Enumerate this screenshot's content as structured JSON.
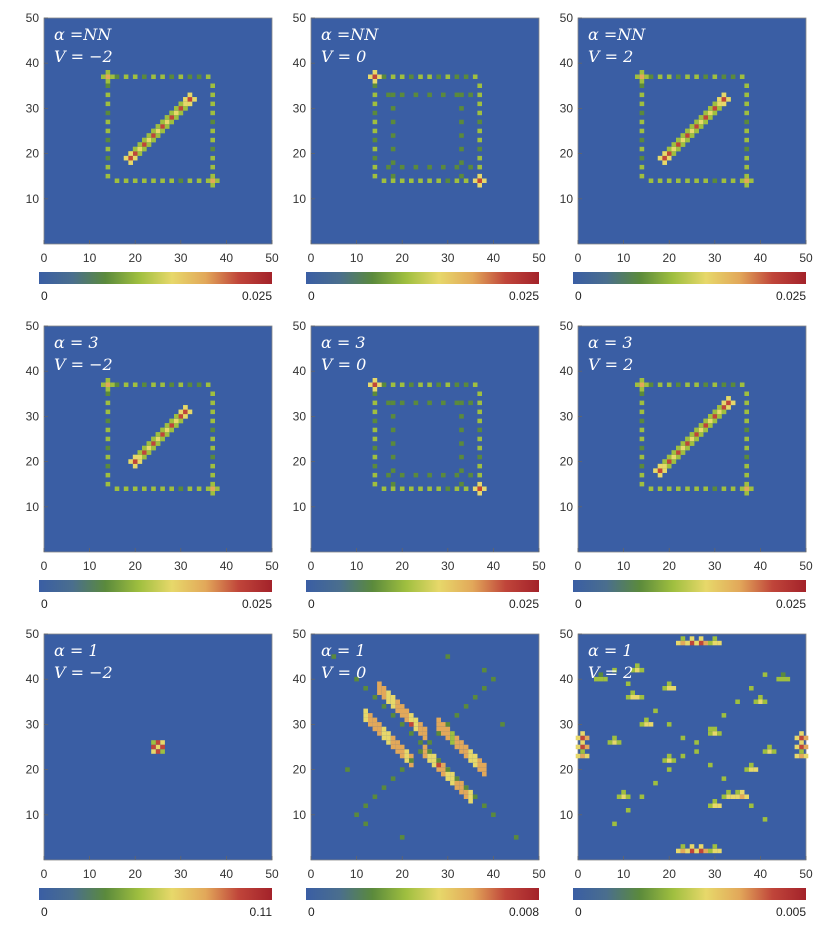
{
  "chart_data": {
    "type": "heatmap",
    "figure": "3x3 grid of density plots",
    "colormap": [
      "#3a5ea4",
      "#4a6e8e",
      "#5b8a3c",
      "#9fbf3f",
      "#e7d86a",
      "#e2a85a",
      "#c0453a",
      "#a3222a"
    ],
    "background_color": "#3a5ea4",
    "xlim": [
      0,
      50
    ],
    "ylim": [
      0,
      50
    ],
    "x_ticks": [
      "0",
      "10",
      "20",
      "30",
      "40",
      "50"
    ],
    "y_ticks": [
      "10",
      "20",
      "30",
      "40",
      "50"
    ],
    "panels": [
      {
        "row": 0,
        "col": 0,
        "alpha": "α =NN",
        "V": "V = −2",
        "cb_min": "0",
        "cb_max": "0.025",
        "pattern": "diagonal_peaks",
        "diag_start": [
          19,
          19
        ],
        "diag_end": [
          32,
          32
        ],
        "corners": [
          [
            14,
            37
          ],
          [
            37,
            14
          ]
        ]
      },
      {
        "row": 0,
        "col": 1,
        "alpha": "α =NN",
        "V": "V = 0",
        "cb_min": "0",
        "cb_max": "0.025",
        "pattern": "edge_corners",
        "corners": [
          [
            14,
            37
          ],
          [
            37,
            14
          ]
        ]
      },
      {
        "row": 0,
        "col": 2,
        "alpha": "α =NN",
        "V": "V = 2",
        "cb_min": "0",
        "cb_max": "0.025",
        "pattern": "diagonal_peaks",
        "diag_start": [
          19,
          19
        ],
        "diag_end": [
          32,
          32
        ],
        "corners": [
          [
            14,
            37
          ],
          [
            37,
            14
          ]
        ]
      },
      {
        "row": 1,
        "col": 0,
        "alpha": "α = 3",
        "V": "V = −2",
        "cb_min": "0",
        "cb_max": "0.025",
        "pattern": "diagonal_peaks",
        "diag_start": [
          20,
          20
        ],
        "diag_end": [
          31,
          31
        ],
        "corners": [
          [
            14,
            37
          ],
          [
            37,
            14
          ]
        ]
      },
      {
        "row": 1,
        "col": 1,
        "alpha": "α = 3",
        "V": "V = 0",
        "cb_min": "0",
        "cb_max": "0.025",
        "pattern": "edge_corners",
        "corners": [
          [
            14,
            37
          ],
          [
            37,
            14
          ]
        ]
      },
      {
        "row": 1,
        "col": 2,
        "alpha": "α = 3",
        "V": "V = 2",
        "cb_min": "0",
        "cb_max": "0.025",
        "pattern": "diagonal_peaks",
        "diag_start": [
          18,
          18
        ],
        "diag_end": [
          33,
          33
        ],
        "corners": [
          [
            14,
            37
          ],
          [
            37,
            14
          ]
        ]
      },
      {
        "row": 2,
        "col": 0,
        "alpha": "α = 1",
        "V": "V = −2",
        "cb_min": "0",
        "cb_max": "0.11",
        "pattern": "center_peak",
        "center": [
          25,
          25
        ]
      },
      {
        "row": 2,
        "col": 1,
        "alpha": "α = 1",
        "V": "V = 0",
        "cb_min": "0",
        "cb_max": "0.008",
        "pattern": "antidiagonal_lobes",
        "center": [
          25,
          25
        ]
      },
      {
        "row": 2,
        "col": 2,
        "alpha": "α = 1",
        "V": "V = 2",
        "cb_min": "0",
        "cb_max": "0.005",
        "pattern": "scattered",
        "center": [
          25,
          25
        ]
      }
    ]
  }
}
